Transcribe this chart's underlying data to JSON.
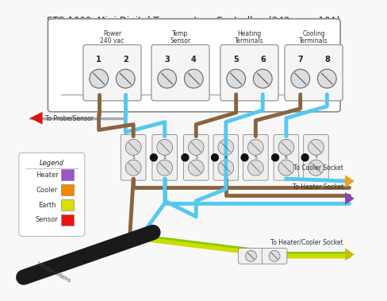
{
  "title": "STC-1000  Mini Digital Temperature Controller  (240 vac - 10A)",
  "title_fontsize": 8.5,
  "background_color": "#f8f8f8",
  "wire_brown": "#8B6340",
  "wire_blue": "#55C8F0",
  "wire_yellow": "#CCDD00",
  "wire_green": "#88CC00",
  "arrow_orange": "#F5A020",
  "arrow_purple": "#8844BB",
  "arrow_yellow": "#CCBB00",
  "legend_items": [
    {
      "label": "Heater",
      "color": "#9955CC"
    },
    {
      "label": "Cooler",
      "color": "#F58800"
    },
    {
      "label": "Earth",
      "color": "#DDDD00"
    },
    {
      "label": "Sensor",
      "color": "#EE1111"
    }
  ]
}
